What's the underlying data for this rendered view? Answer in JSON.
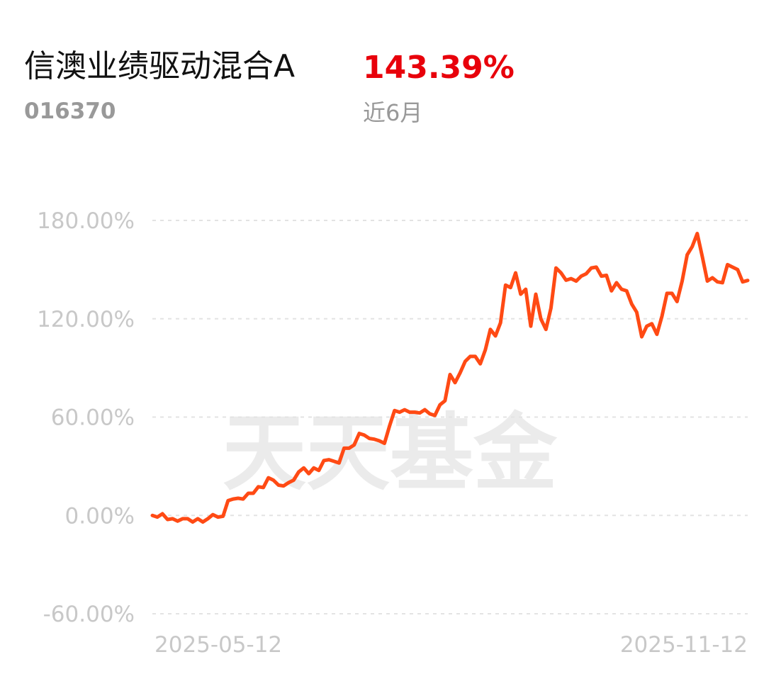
{
  "header": {
    "title": "信澳业绩驱动混合A",
    "code": "016370",
    "return": "143.39%",
    "period": "近6月"
  },
  "chart_data": {
    "type": "line",
    "watermark": "天天基金",
    "categories": [
      "2025-05-12",
      null,
      null,
      null,
      null,
      null,
      null,
      null,
      null,
      null,
      null,
      null,
      null,
      null,
      null,
      null,
      null,
      null,
      null,
      null,
      null,
      null,
      null,
      null,
      null,
      null,
      null,
      null,
      null,
      null,
      null,
      null,
      null,
      null,
      null,
      null,
      null,
      null,
      null,
      null,
      null,
      null,
      null,
      null,
      null,
      null,
      null,
      null,
      null,
      null,
      null,
      null,
      null,
      null,
      null,
      null,
      null,
      null,
      null,
      null,
      null,
      null,
      null,
      null,
      null,
      null,
      null,
      null,
      null,
      null,
      null,
      null,
      null,
      null,
      null,
      null,
      null,
      null,
      null,
      null,
      null,
      null,
      null,
      null,
      null,
      null,
      null,
      null,
      null,
      null,
      null,
      null,
      null,
      null,
      null,
      null,
      null,
      null,
      null,
      null,
      null,
      null,
      null,
      null,
      null,
      null,
      null,
      null,
      null,
      null,
      null,
      null,
      null,
      null,
      null,
      null,
      null,
      null,
      "2025-11-12"
    ],
    "series": [
      {
        "color": "#ff4a14",
        "values": [
          0,
          -1,
          1,
          -2.5,
          -2,
          -3.5,
          -2,
          -2,
          -4,
          -2,
          -4,
          -2,
          0.5,
          -1,
          -0.5,
          9,
          10,
          10.5,
          10,
          13.5,
          13.5,
          17.5,
          17,
          23,
          21.5,
          18.5,
          18,
          20,
          21.5,
          26.5,
          29,
          25.5,
          29,
          27.5,
          33.5,
          34,
          33,
          32,
          41,
          41,
          43,
          50,
          49,
          47,
          46.5,
          45.5,
          44,
          54.5,
          64,
          63,
          64.5,
          63,
          63,
          62.5,
          64.5,
          62,
          61,
          67.5,
          70,
          86,
          81,
          87,
          94,
          97,
          97,
          92.5,
          101,
          113.5,
          109.5,
          117.5,
          140.5,
          139,
          148,
          135,
          138,
          115.5,
          135,
          120,
          113.5,
          126.5,
          151,
          148,
          143.5,
          144.5,
          143,
          146,
          147.5,
          151,
          151.5,
          146,
          146.5,
          137,
          142,
          138,
          137,
          129,
          124,
          109,
          115.5,
          117,
          110.5,
          121.5,
          135.5,
          135.5,
          130.5,
          143,
          159,
          164,
          172,
          158,
          143,
          145,
          142.5,
          142,
          153,
          151.5,
          150,
          142.5,
          143.39
        ]
      }
    ],
    "ylim": [
      -60,
      180
    ],
    "yticks": [
      {
        "value": 180,
        "label": "180.00%"
      },
      {
        "value": 120,
        "label": "120.00%"
      },
      {
        "value": 60,
        "label": "60.00%"
      },
      {
        "value": 0,
        "label": "0.00%"
      },
      {
        "value": -60,
        "label": "-60.00%"
      }
    ],
    "grid": true
  }
}
